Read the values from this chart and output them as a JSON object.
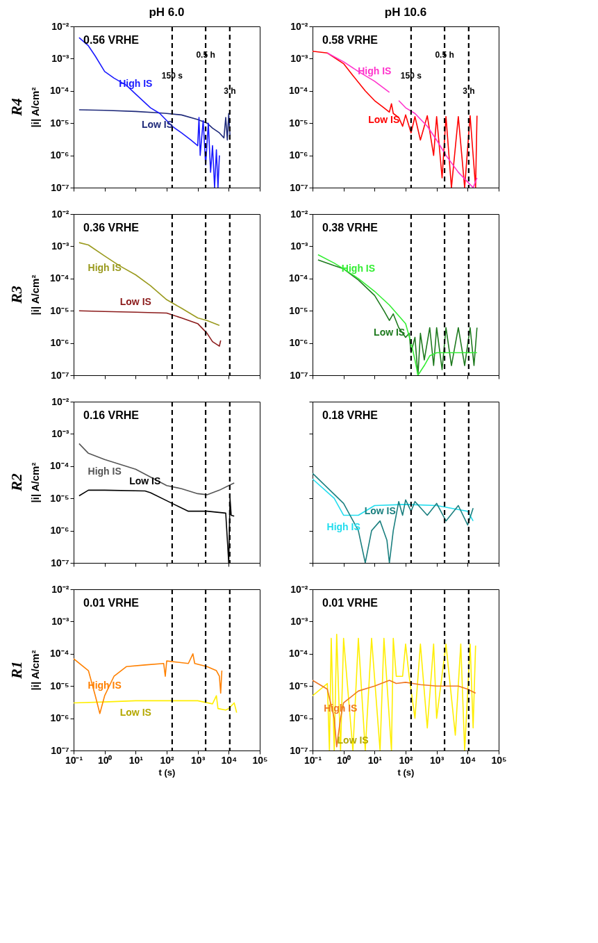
{
  "chart_data": [
    {
      "type": "line",
      "log": "xy",
      "title": "pH 6.0",
      "subtitle": "R4",
      "ylabel": "|i| A/cm²",
      "annotations": [
        "0.56 VRHE"
      ],
      "tick_labels": "y",
      "grid": false,
      "xlim": [
        0.1,
        100000
      ],
      "ylim": [
        1e-07,
        0.01
      ],
      "xticks": [
        {
          "value": 0.1,
          "label": null
        },
        {
          "value": 1,
          "label": null
        },
        {
          "value": 10,
          "label": null
        },
        {
          "value": 100,
          "label": null
        },
        {
          "value": 1000,
          "label": null
        },
        {
          "value": 10000,
          "label": null
        },
        {
          "value": 100000,
          "label": null
        }
      ],
      "yticks": [
        {
          "value": 1e-07,
          "label": "10⁻⁷"
        },
        {
          "value": 1e-06,
          "label": "10⁻⁶"
        },
        {
          "value": 1e-05,
          "label": "10⁻⁵"
        },
        {
          "value": 0.0001,
          "label": "10⁻⁴"
        },
        {
          "value": 0.001,
          "label": "10⁻³"
        },
        {
          "value": 0.01,
          "label": "10⁻²"
        }
      ],
      "ref_lines": [
        {
          "axis": "x",
          "value": 150,
          "label": "150 s"
        },
        {
          "axis": "x",
          "value": 1800,
          "label": "0.5 h"
        },
        {
          "axis": "x",
          "value": 10800,
          "label": "3 h"
        }
      ],
      "series": [
        {
          "name": "Low IS",
          "color": "#1f2a7a",
          "x": [
            0.15,
            1,
            10,
            50,
            100,
            300,
            1000,
            2000,
            3000,
            5000,
            7000,
            8000,
            9000,
            10000,
            11000
          ],
          "values": [
            2.6e-05,
            2.5e-05,
            2.3e-05,
            2.1e-05,
            2e-05,
            1.8e-05,
            1.3e-05,
            1e-05,
            7e-06,
            5e-06,
            3.5e-06,
            1.5e-05,
            3e-06,
            2e-05,
            4e-06
          ]
        },
        {
          "name": "High IS",
          "color": "#1a1aff",
          "x": [
            0.15,
            0.3,
            0.5,
            1,
            2,
            5,
            10,
            30,
            60,
            100,
            150,
            300,
            600,
            1000,
            1100,
            1200,
            1500,
            1800,
            2200,
            2600,
            3000,
            3500,
            4000,
            4500,
            5000
          ],
          "values": [
            0.0045,
            0.0025,
            0.0012,
            0.0004,
            0.00025,
            0.00015,
            8e-05,
            3e-05,
            2e-05,
            1.2e-05,
            8e-06,
            5e-06,
            3e-06,
            2e-06,
            1.5e-05,
            1e-06,
            1.2e-05,
            5e-07,
            1e-05,
            3e-07,
            2e-06,
            1e-07,
            1.5e-06,
            1e-07,
            1e-06
          ]
        }
      ]
    },
    {
      "type": "line",
      "log": "xy",
      "title": "pH 10.6",
      "annotations": [
        "0.58 VRHE"
      ],
      "tick_labels": "y",
      "grid": false,
      "xlim": [
        0.1,
        100000
      ],
      "ylim": [
        1e-07,
        0.01
      ],
      "xticks": [
        {
          "value": 0.1,
          "label": null
        },
        {
          "value": 1,
          "label": null
        },
        {
          "value": 10,
          "label": null
        },
        {
          "value": 100,
          "label": null
        },
        {
          "value": 1000,
          "label": null
        },
        {
          "value": 10000,
          "label": null
        },
        {
          "value": 100000,
          "label": null
        }
      ],
      "yticks": [
        {
          "value": 1e-07,
          "label": "10⁻⁷"
        },
        {
          "value": 1e-06,
          "label": "10⁻⁶"
        },
        {
          "value": 1e-05,
          "label": "10⁻⁵"
        },
        {
          "value": 0.0001,
          "label": "10⁻⁴"
        },
        {
          "value": 0.001,
          "label": "10⁻³"
        },
        {
          "value": 0.01,
          "label": "10⁻²"
        }
      ],
      "ref_lines": [
        {
          "axis": "x",
          "value": 150,
          "label": "150 s"
        },
        {
          "axis": "x",
          "value": 1800,
          "label": "0.5 h"
        },
        {
          "axis": "x",
          "value": 10800,
          "label": "3 h"
        }
      ],
      "series": [
        {
          "name": "Low IS",
          "color": "#ff0000",
          "x": [
            0.1,
            0.3,
            1,
            2,
            5,
            10,
            20,
            30,
            35,
            40,
            60,
            80,
            100,
            150,
            200,
            300,
            500,
            800,
            1000,
            1500,
            2000,
            3000,
            5000,
            8000,
            12000,
            18000,
            20000
          ],
          "values": [
            0.0017,
            0.0015,
            0.0007,
            0.0003,
            0.0001,
            5e-05,
            3e-05,
            2.2e-05,
            4e-05,
            2e-05,
            1.5e-05,
            8e-06,
            1.8e-05,
            5e-06,
            1.6e-05,
            3e-06,
            1.7e-05,
            1e-06,
            1.6e-05,
            2e-07,
            1.6e-05,
            1e-07,
            1.6e-05,
            1e-07,
            1.7e-05,
            1e-07,
            1.7e-05
          ]
        },
        {
          "name": "High IS",
          "color": "#ff33cc",
          "x": [
            0.3,
            1,
            3,
            10,
            30,
            45,
            60,
            100,
            200,
            500,
            1000,
            2000,
            5000,
            10000,
            15000,
            20000
          ],
          "values": [
            0.0015,
            0.0008,
            0.0004,
            0.0002,
            9e-05,
            null,
            5e-05,
            3e-05,
            2e-05,
            8e-06,
            3e-06,
            1e-06,
            3e-07,
            1.5e-07,
            1e-07,
            2e-07
          ]
        }
      ]
    },
    {
      "type": "line",
      "log": "xy",
      "subtitle": "R3",
      "ylabel": "|i| A/cm²",
      "annotations": [
        "0.36 VRHE"
      ],
      "tick_labels": "y",
      "grid": false,
      "xlim": [
        0.1,
        100000
      ],
      "ylim": [
        1e-07,
        0.01
      ],
      "xticks": [
        {
          "value": 0.1,
          "label": null
        },
        {
          "value": 1,
          "label": null
        },
        {
          "value": 10,
          "label": null
        },
        {
          "value": 100,
          "label": null
        },
        {
          "value": 1000,
          "label": null
        },
        {
          "value": 10000,
          "label": null
        },
        {
          "value": 100000,
          "label": null
        }
      ],
      "yticks": [
        {
          "value": 1e-07,
          "label": "10⁻⁷"
        },
        {
          "value": 1e-06,
          "label": "10⁻⁶"
        },
        {
          "value": 1e-05,
          "label": "10⁻⁵"
        },
        {
          "value": 0.0001,
          "label": "10⁻⁴"
        },
        {
          "value": 0.001,
          "label": "10⁻³"
        },
        {
          "value": 0.01,
          "label": "10⁻²"
        }
      ],
      "ref_lines": [
        {
          "axis": "x",
          "value": 150
        },
        {
          "axis": "x",
          "value": 1800
        },
        {
          "axis": "x",
          "value": 10800
        }
      ],
      "series": [
        {
          "name": "High IS",
          "color": "#9a9a1e",
          "x": [
            0.15,
            0.3,
            1,
            3,
            10,
            30,
            100,
            300,
            1000,
            2000,
            5000
          ],
          "values": [
            0.0013,
            0.0011,
            0.0005,
            0.00025,
            0.00013,
            6e-05,
            2.2e-05,
            1.2e-05,
            6e-06,
            5e-06,
            3.5e-06
          ]
        },
        {
          "name": "Low IS",
          "color": "#8b1a1a",
          "x": [
            0.15,
            1,
            10,
            100,
            300,
            1000,
            2000,
            3000,
            5000,
            5500
          ],
          "values": [
            1e-05,
            9.5e-06,
            9e-06,
            8.5e-06,
            6e-06,
            4e-06,
            2e-06,
            1.1e-06,
            8e-07,
            1.2e-06
          ]
        }
      ]
    },
    {
      "type": "line",
      "log": "xy",
      "annotations": [
        "0.38 VRHE"
      ],
      "tick_labels": "y",
      "grid": false,
      "xlim": [
        0.1,
        100000
      ],
      "ylim": [
        1e-07,
        0.01
      ],
      "xticks": [
        {
          "value": 0.1,
          "label": null
        },
        {
          "value": 1,
          "label": null
        },
        {
          "value": 10,
          "label": null
        },
        {
          "value": 100,
          "label": null
        },
        {
          "value": 1000,
          "label": null
        },
        {
          "value": 10000,
          "label": null
        },
        {
          "value": 100000,
          "label": null
        }
      ],
      "yticks": [
        {
          "value": 1e-07,
          "label": "10⁻⁷"
        },
        {
          "value": 1e-06,
          "label": "10⁻⁶"
        },
        {
          "value": 1e-05,
          "label": "10⁻⁵"
        },
        {
          "value": 0.0001,
          "label": "10⁻⁴"
        },
        {
          "value": 0.001,
          "label": "10⁻³"
        },
        {
          "value": 0.01,
          "label": "10⁻²"
        }
      ],
      "ref_lines": [
        {
          "axis": "x",
          "value": 150
        },
        {
          "axis": "x",
          "value": 1800
        },
        {
          "axis": "x",
          "value": 10800
        }
      ],
      "series": [
        {
          "name": "Low IS",
          "color": "#1e7a1e",
          "x": [
            0.15,
            0.5,
            1,
            3,
            10,
            20,
            30,
            40,
            60,
            100,
            130,
            150,
            200,
            250,
            300,
            400,
            600,
            800,
            1000,
            1500,
            2000,
            3000,
            5000,
            8000,
            12000,
            16000,
            20000
          ],
          "values": [
            0.00038,
            0.00025,
            0.0002,
            9e-05,
            3e-05,
            1e-05,
            5e-06,
            8e-06,
            3e-06,
            1.5e-06,
            2e-06,
            5e-07,
            1.5e-06,
            1e-07,
            2e-06,
            3e-07,
            3e-06,
            2e-07,
            3e-06,
            1.5e-07,
            3e-06,
            2e-07,
            3e-06,
            2e-07,
            3e-06,
            2e-07,
            3e-06
          ]
        },
        {
          "name": "High IS",
          "color": "#33ee33",
          "x": [
            0.15,
            0.5,
            1,
            3,
            10,
            30,
            100,
            150,
            200,
            250,
            400,
            600,
            1000,
            20000
          ],
          "values": [
            0.00055,
            0.0003,
            0.0002,
            0.0001,
            4e-05,
            1.5e-05,
            4e-06,
            1e-06,
            3e-07,
            1e-07,
            2e-07,
            4e-07,
            5e-07,
            5e-07
          ]
        }
      ]
    },
    {
      "type": "line",
      "log": "xy",
      "subtitle": "R2",
      "ylabel": "|i| A/cm²",
      "annotations": [
        "0.16 VRHE"
      ],
      "tick_labels": "y",
      "grid": false,
      "xlim": [
        0.1,
        100000
      ],
      "ylim": [
        1e-07,
        0.01
      ],
      "xticks": [
        {
          "value": 0.1,
          "label": null
        },
        {
          "value": 1,
          "label": null
        },
        {
          "value": 10,
          "label": null
        },
        {
          "value": 100,
          "label": null
        },
        {
          "value": 1000,
          "label": null
        },
        {
          "value": 10000,
          "label": null
        },
        {
          "value": 100000,
          "label": null
        }
      ],
      "yticks": [
        {
          "value": 1e-07,
          "label": "10⁻⁷"
        },
        {
          "value": 1e-06,
          "label": "10⁻⁶"
        },
        {
          "value": 1e-05,
          "label": "10⁻⁵"
        },
        {
          "value": 0.0001,
          "label": "10⁻⁴"
        },
        {
          "value": 0.001,
          "label": "10⁻³"
        },
        {
          "value": 0.01,
          "label": "10⁻²"
        }
      ],
      "ref_lines": [
        {
          "axis": "x",
          "value": 150
        },
        {
          "axis": "x",
          "value": 1800
        },
        {
          "axis": "x",
          "value": 10800
        }
      ],
      "series": [
        {
          "name": "High IS",
          "color": "#555555",
          "x": [
            0.15,
            0.3,
            1,
            10,
            100,
            300,
            1000,
            2000,
            5000,
            10000,
            15000
          ],
          "values": [
            0.0005,
            0.00025,
            0.00016,
            8e-05,
            2.5e-05,
            2e-05,
            1.4e-05,
            1.3e-05,
            1.8e-05,
            2.5e-05,
            3e-05
          ]
        },
        {
          "name": "Low IS",
          "color": "#000000",
          "x": [
            0.15,
            0.3,
            1,
            20,
            30,
            150,
            500,
            2000,
            8000,
            10000,
            11000,
            12000,
            15000
          ],
          "values": [
            1.2e-05,
            1.8e-05,
            1.8e-05,
            1.7e-05,
            1.5e-05,
            7e-06,
            4e-06,
            4e-06,
            3.5e-06,
            1e-07,
            1e-05,
            3e-06,
            2.8e-06
          ]
        }
      ]
    },
    {
      "type": "line",
      "log": "xy",
      "annotations": [
        "0.18 VRHE"
      ],
      "tick_labels": false,
      "grid": false,
      "xlim": [
        0.1,
        100000
      ],
      "ylim": [
        1e-07,
        0.01
      ],
      "xticks": [
        {
          "value": 0.1,
          "label": null
        },
        {
          "value": 1,
          "label": null
        },
        {
          "value": 10,
          "label": null
        },
        {
          "value": 100,
          "label": null
        },
        {
          "value": 1000,
          "label": null
        },
        {
          "value": 10000,
          "label": null
        },
        {
          "value": 100000,
          "label": null
        }
      ],
      "yticks": [
        {
          "value": 1e-07,
          "label": null
        },
        {
          "value": 1e-06,
          "label": null
        },
        {
          "value": 1e-05,
          "label": null
        },
        {
          "value": 0.0001,
          "label": null
        },
        {
          "value": 0.001,
          "label": null
        },
        {
          "value": 0.01,
          "label": null
        }
      ],
      "ref_lines": [
        {
          "axis": "x",
          "value": 150
        },
        {
          "axis": "x",
          "value": 1800
        },
        {
          "axis": "x",
          "value": 10800
        }
      ],
      "series": [
        {
          "name": "High IS",
          "color": "#22ddee",
          "x": [
            0.1,
            0.5,
            1,
            3,
            10,
            100,
            1000,
            10000,
            15000
          ],
          "values": [
            4e-05,
            1e-05,
            3e-06,
            3e-06,
            6e-06,
            6.5e-06,
            6e-06,
            4e-06,
            2e-06
          ]
        },
        {
          "name": "Low IS",
          "color": "#1a7f7f",
          "x": [
            0.1,
            1,
            3,
            5,
            8,
            15,
            25,
            30,
            40,
            60,
            80,
            100,
            150,
            200,
            500,
            1000,
            2000,
            5000,
            10000,
            15000
          ],
          "values": [
            6e-05,
            7e-06,
            1e-06,
            1e-07,
            1e-06,
            2e-06,
            5e-07,
            1e-07,
            1e-06,
            8e-06,
            3e-06,
            9e-06,
            4e-06,
            8e-06,
            3e-06,
            7e-06,
            2e-06,
            6e-06,
            1.5e-06,
            5e-06
          ]
        }
      ]
    },
    {
      "type": "line",
      "log": "xy",
      "subtitle": "R1",
      "xlabel": "t (s)",
      "ylabel": "|i| A/cm²",
      "annotations": [
        "0.01 VRHE"
      ],
      "grid": false,
      "xlim": [
        0.1,
        100000
      ],
      "ylim": [
        1e-07,
        0.01
      ],
      "xticks": [
        {
          "value": 0.1,
          "label": "10⁻¹"
        },
        {
          "value": 1,
          "label": "10⁰"
        },
        {
          "value": 10,
          "label": "10¹"
        },
        {
          "value": 100,
          "label": "10²"
        },
        {
          "value": 1000,
          "label": "10³"
        },
        {
          "value": 10000,
          "label": "10⁴"
        },
        {
          "value": 100000,
          "label": "10⁵"
        }
      ],
      "yticks": [
        {
          "value": 1e-07,
          "label": "10⁻⁷"
        },
        {
          "value": 1e-06,
          "label": "10⁻⁶"
        },
        {
          "value": 1e-05,
          "label": "10⁻⁵"
        },
        {
          "value": 0.0001,
          "label": "10⁻⁴"
        },
        {
          "value": 0.001,
          "label": "10⁻³"
        },
        {
          "value": 0.01,
          "label": "10⁻²"
        }
      ],
      "ref_lines": [
        {
          "axis": "x",
          "value": 150
        },
        {
          "axis": "x",
          "value": 1800
        },
        {
          "axis": "x",
          "value": 10800
        }
      ],
      "series": [
        {
          "name": "Low IS",
          "color": "#ffee00",
          "x": [
            0.1,
            1,
            10,
            1000,
            3000,
            4000,
            4500,
            8000,
            10000,
            15000,
            18000
          ],
          "values": [
            3e-06,
            3.2e-06,
            3.5e-06,
            3.5e-06,
            2.8e-06,
            5e-06,
            2e-06,
            1.8e-06,
            2e-06,
            3e-06,
            1.5e-06
          ]
        },
        {
          "name": "High IS",
          "color": "#ff8000",
          "x": [
            0.1,
            0.3,
            0.5,
            0.7,
            1,
            2,
            5,
            20,
            80,
            90,
            100,
            500,
            700,
            800,
            2000,
            4000,
            5000,
            5500,
            6000
          ],
          "values": [
            7e-05,
            3e-05,
            5e-06,
            1.4e-06,
            5e-06,
            2e-05,
            4e-05,
            4.5e-05,
            5e-05,
            2e-05,
            6e-05,
            5e-05,
            0.0001,
            5e-05,
            4e-05,
            3e-05,
            2e-05,
            6e-06,
            3e-05
          ]
        }
      ]
    },
    {
      "type": "line",
      "log": "xy",
      "xlabel": "t (s)",
      "annotations": [
        "0.01 VRHE"
      ],
      "grid": false,
      "xlim": [
        0.1,
        100000
      ],
      "ylim": [
        1e-07,
        0.01
      ],
      "xticks": [
        {
          "value": 0.1,
          "label": "10⁻¹"
        },
        {
          "value": 1,
          "label": "10⁰"
        },
        {
          "value": 10,
          "label": "10¹"
        },
        {
          "value": 100,
          "label": "10²"
        },
        {
          "value": 1000,
          "label": "10³"
        },
        {
          "value": 10000,
          "label": "10⁴"
        },
        {
          "value": 100000,
          "label": "10⁵"
        }
      ],
      "yticks": [
        {
          "value": 1e-07,
          "label": "10⁻⁷"
        },
        {
          "value": 1e-06,
          "label": "10⁻⁶"
        },
        {
          "value": 1e-05,
          "label": "10⁻⁵"
        },
        {
          "value": 0.0001,
          "label": "10⁻⁴"
        },
        {
          "value": 0.001,
          "label": "10⁻³"
        },
        {
          "value": 0.01,
          "label": "10⁻²"
        }
      ],
      "ref_lines": [
        {
          "axis": "x",
          "value": 150
        },
        {
          "axis": "x",
          "value": 1800
        },
        {
          "axis": "x",
          "value": 10800
        }
      ],
      "series": [
        {
          "name": "Low IS",
          "color": "#ffee00",
          "x": [
            0.1,
            0.3,
            0.35,
            0.4,
            0.5,
            0.6,
            0.8,
            1,
            2,
            3,
            5,
            8,
            15,
            20,
            35,
            40,
            50,
            80,
            100,
            130,
            200,
            300,
            500,
            800,
            1000,
            2000,
            4000,
            6000,
            8000,
            12000,
            15000,
            18000
          ],
          "values": [
            5e-06,
            1.2e-05,
            1e-07,
            0.0003,
            1e-07,
            0.0004,
            1e-07,
            0.0003,
            1e-07,
            0.0003,
            1e-07,
            0.0003,
            1e-07,
            0.0003,
            1e-07,
            0.0003,
            2e-05,
            2e-05,
            0.0002,
            2e-05,
            1e-06,
            0.0002,
            5e-07,
            0.0002,
            1e-06,
            0.0002,
            3e-07,
            0.0002,
            1e-07,
            0.0002,
            5e-07,
            0.00018
          ]
        },
        {
          "name": "High IS",
          "color": "#ee7722",
          "x": [
            0.1,
            0.3,
            0.5,
            0.6,
            0.8,
            1,
            3,
            10,
            30,
            50,
            100,
            300,
            1000,
            5000,
            10000,
            18000
          ],
          "values": [
            1.5e-05,
            8e-06,
            1e-06,
            1.3e-07,
            1e-06,
            3e-06,
            7e-06,
            1e-05,
            1.5e-05,
            1.2e-05,
            1.3e-05,
            1.1e-05,
            1e-05,
            1e-05,
            8e-06,
            6e-06
          ]
        }
      ]
    }
  ]
}
